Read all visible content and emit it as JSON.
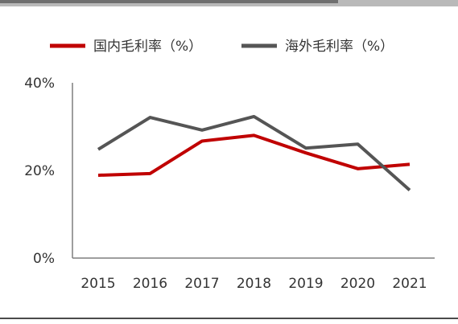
{
  "chart_data": {
    "type": "line",
    "title": "",
    "xlabel": "",
    "ylabel": "",
    "categories": [
      "2015",
      "2016",
      "2017",
      "2018",
      "2019",
      "2020",
      "2021"
    ],
    "ylim": [
      0,
      40
    ],
    "yticks": [
      "0%",
      "20%",
      "40%"
    ],
    "grid": false,
    "legend_position": "top",
    "series": [
      {
        "name": "国内毛利率（%）",
        "color": "#c00000",
        "values": [
          18.9,
          19.3,
          26.7,
          28.0,
          24.0,
          20.4,
          21.4
        ]
      },
      {
        "name": "海外毛利率（%）",
        "color": "#555555",
        "values": [
          24.8,
          32.1,
          29.2,
          32.3,
          25.1,
          26.0,
          15.5
        ]
      }
    ]
  }
}
